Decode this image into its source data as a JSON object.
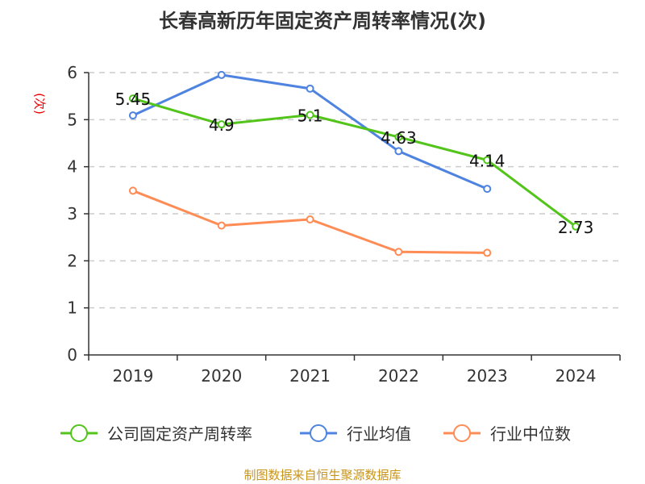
{
  "chart_data": {
    "type": "line",
    "title": "长春高新历年固定资产周转率情况(次)",
    "ylabel": "(次)",
    "xlabel": "",
    "categories": [
      "2019",
      "2020",
      "2021",
      "2022",
      "2023",
      "2024"
    ],
    "ylim": [
      0,
      6
    ],
    "yticks": [
      0,
      1,
      2,
      3,
      4,
      5,
      6
    ],
    "grid": true,
    "legend_position": "bottom",
    "series": [
      {
        "name": "公司固定资产周转率",
        "color": "#52c41a",
        "values": [
          5.45,
          4.9,
          5.1,
          4.63,
          4.14,
          2.73
        ],
        "labels": [
          "5.45",
          "4.9",
          "5.1",
          "4.63",
          "4.14",
          "2.73"
        ]
      },
      {
        "name": "行业均值",
        "color": "#4e84e0",
        "values": [
          5.09,
          5.95,
          5.66,
          4.33,
          3.53,
          null
        ]
      },
      {
        "name": "行业中位数",
        "color": "#ff8c55",
        "values": [
          3.49,
          2.75,
          2.88,
          2.19,
          2.17,
          null
        ]
      }
    ]
  },
  "footer": "制图数据来自恒生聚源数据库"
}
